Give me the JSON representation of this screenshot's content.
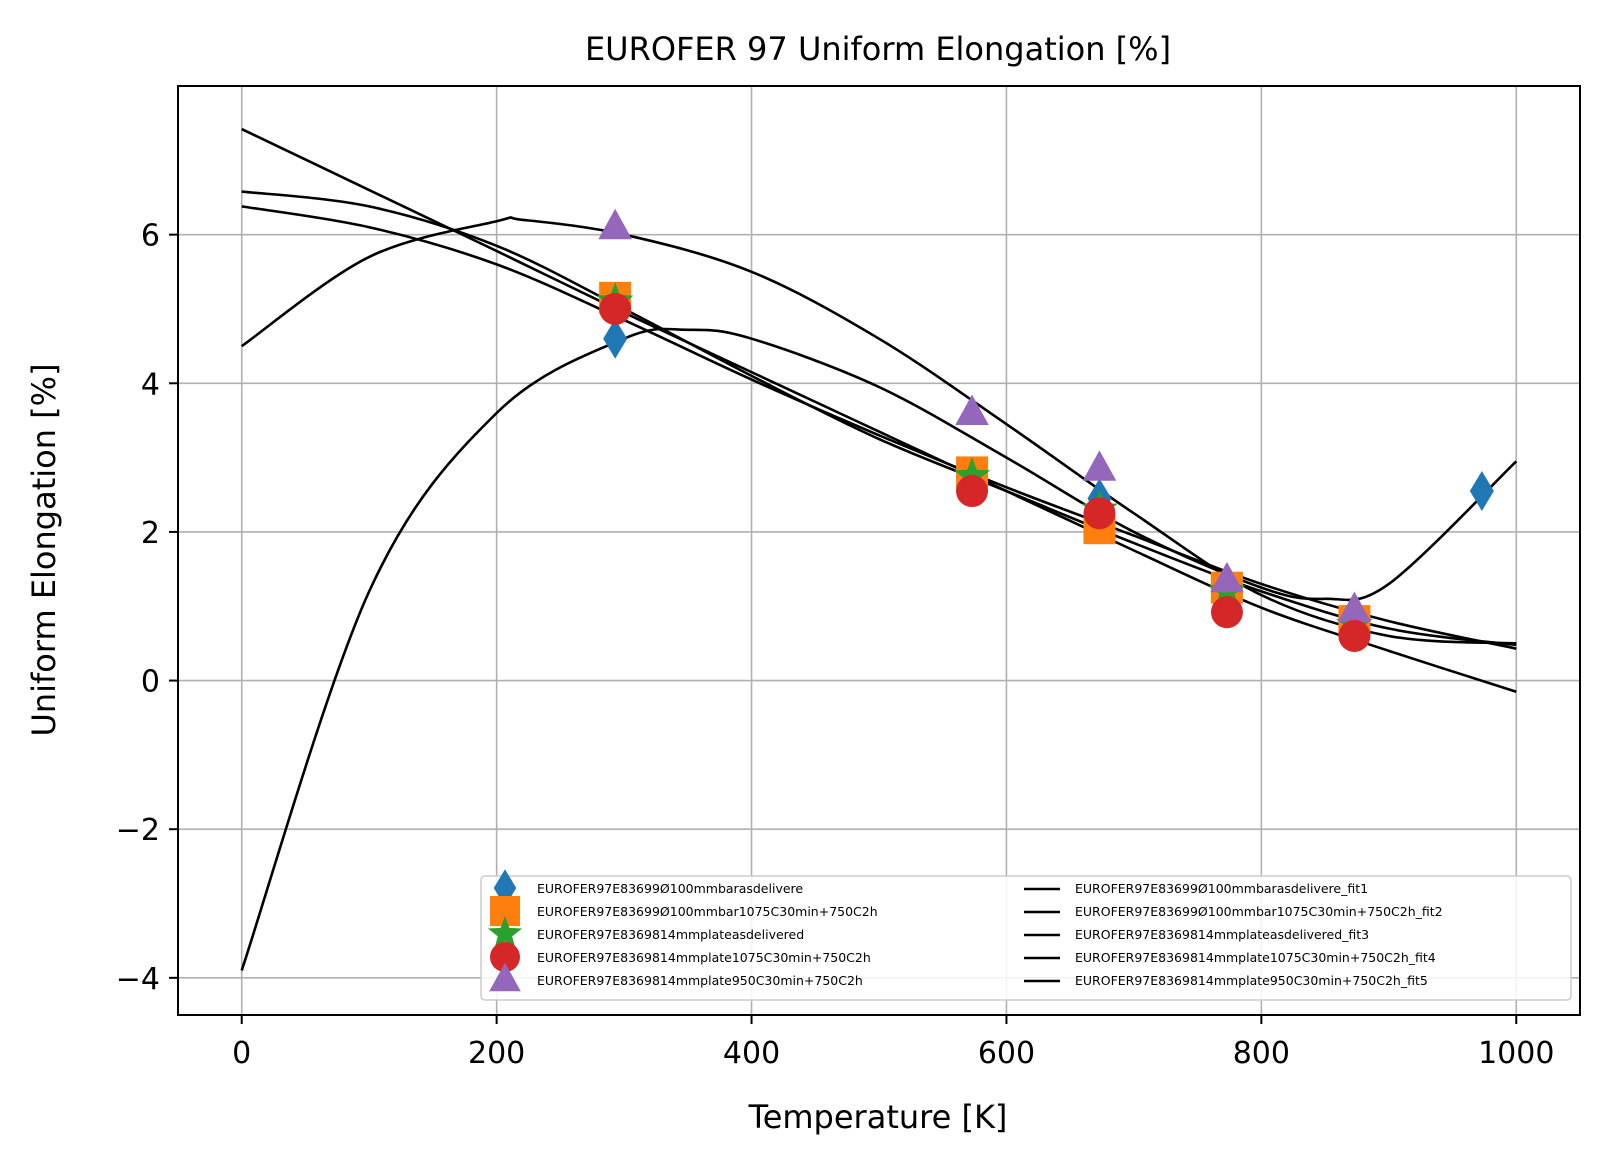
{
  "chart_data": {
    "type": "scatter",
    "title": "EUROFER 97 Uniform Elongation [%]",
    "xlabel": "Temperature [K]",
    "ylabel": "Uniform Elongation [%]",
    "xlim": [
      -50,
      1050
    ],
    "ylim": [
      -4.5,
      8.0
    ],
    "xticks": [
      0,
      200,
      400,
      600,
      800,
      1000
    ],
    "xtick_labels": [
      "0",
      "200",
      "400",
      "600",
      "800",
      "1000"
    ],
    "yticks": [
      -4,
      -2,
      0,
      2,
      4,
      6
    ],
    "ytick_labels": [
      "−4",
      "−2",
      "0",
      "2",
      "4",
      "6"
    ],
    "grid": true,
    "legend_position": "lower right",
    "series": [
      {
        "name": "EUROFER97E83699Ø100mmbarasdelivere",
        "marker": "diamond",
        "color": "#1f77b4",
        "x": [
          293,
          573,
          673,
          773,
          873,
          973
        ],
        "y": [
          4.6,
          2.7,
          2.45,
          1.3,
          0.85,
          2.55
        ]
      },
      {
        "name": "EUROFER97E83699Ø100mmbar1075C30min+750C2h",
        "marker": "square",
        "color": "#ff7f0e",
        "x": [
          293,
          573,
          673,
          773,
          873
        ],
        "y": [
          5.15,
          2.8,
          2.05,
          1.25,
          0.8
        ]
      },
      {
        "name": "EUROFER97E8369814mmplateasdelivered",
        "marker": "star",
        "color": "#2ca02c",
        "x": [
          293,
          573,
          673,
          773,
          873
        ],
        "y": [
          5.1,
          2.75,
          2.3,
          1.2,
          0.75
        ]
      },
      {
        "name": "EUROFER97E8369814mmplate1075C30min+750C2h",
        "marker": "circle",
        "color": "#d62728",
        "x": [
          293,
          573,
          673,
          773,
          873
        ],
        "y": [
          5.0,
          2.55,
          2.25,
          0.92,
          0.6
        ]
      },
      {
        "name": "EUROFER97E8369814mmplate950C30min+750C2h",
        "marker": "triangle",
        "color": "#9467bd",
        "x": [
          293,
          573,
          673,
          773,
          873
        ],
        "y": [
          6.1,
          3.6,
          2.85,
          1.35,
          0.95
        ]
      }
    ],
    "fits": [
      {
        "name": "EUROFER97E83699Ø100mmbarasdelivere_fit1",
        "color": "#000000",
        "x": [
          0,
          100,
          200,
          300,
          350,
          400,
          500,
          600,
          700,
          800,
          850,
          900,
          1000
        ],
        "y": [
          -3.9,
          1.2,
          3.6,
          4.6,
          4.72,
          4.6,
          3.95,
          3.0,
          2.0,
          1.25,
          1.1,
          1.3,
          2.95
        ]
      },
      {
        "name": "EUROFER97E83699Ø100mmbar1075C30min+750C2h_fit2",
        "color": "#000000",
        "x": [
          0,
          100,
          200,
          300,
          400,
          500,
          600,
          700,
          800,
          900,
          1000
        ],
        "y": [
          7.42,
          6.6,
          5.78,
          4.95,
          4.15,
          3.35,
          2.55,
          1.75,
          0.98,
          0.4,
          -0.15
        ]
      },
      {
        "name": "EUROFER97E8369814mmplateasdelivered_fit3",
        "color": "#000000",
        "x": [
          0,
          100,
          200,
          300,
          400,
          500,
          600,
          700,
          800,
          900,
          1000
        ],
        "y": [
          6.58,
          6.38,
          5.85,
          5.0,
          4.1,
          3.25,
          2.55,
          1.85,
          1.2,
          0.7,
          0.48
        ]
      },
      {
        "name": "EUROFER97E8369814mmplate1075C30min+750C2h_fit4",
        "color": "#000000",
        "x": [
          0,
          100,
          200,
          300,
          400,
          500,
          600,
          700,
          800,
          900,
          1000
        ],
        "y": [
          6.38,
          6.1,
          5.6,
          4.85,
          4.05,
          3.3,
          2.6,
          1.95,
          1.3,
          0.8,
          0.43
        ]
      },
      {
        "name": "EUROFER97E8369814mmplate950C30min+750C2h_fit5",
        "color": "#000000",
        "x": [
          0,
          100,
          200,
          220,
          300,
          400,
          500,
          600,
          700,
          800,
          900,
          1000
        ],
        "y": [
          4.5,
          5.7,
          6.18,
          6.2,
          6.0,
          5.5,
          4.6,
          3.45,
          2.25,
          1.15,
          0.6,
          0.5
        ]
      }
    ]
  }
}
